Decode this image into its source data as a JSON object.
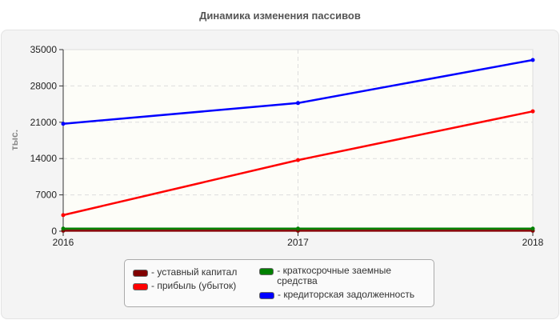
{
  "title": "Динамика изменения пассивов",
  "chart_data": {
    "type": "line",
    "title": "Динамика изменения пассивов",
    "xlabel": "",
    "ylabel": "тыс.",
    "categories": [
      "2016",
      "2017",
      "2018"
    ],
    "yticks": [
      "0",
      "7000",
      "14000",
      "21000",
      "28000",
      "35000"
    ],
    "ylim": [
      0,
      35000
    ],
    "grid": true,
    "legend_position": "bottom",
    "series": [
      {
        "name": "уставный капитал",
        "color": "#800000",
        "values": [
          100,
          100,
          100
        ]
      },
      {
        "name": "прибыль (убыток)",
        "color": "#ff0000",
        "values": [
          3100,
          13700,
          23100
        ]
      },
      {
        "name": "краткосрочные заемные средства",
        "color": "#008000",
        "values": [
          500,
          500,
          500
        ]
      },
      {
        "name": "кредиторская задолженность",
        "color": "#0000ff",
        "values": [
          20700,
          24700,
          33000
        ]
      }
    ]
  },
  "legend": [
    {
      "label": "- уставный капитал",
      "color": "#800000"
    },
    {
      "label": "- прибыль (убыток)",
      "color": "#ff0000"
    },
    {
      "label": "- краткосрочные заемные средства",
      "color": "#008000"
    },
    {
      "label": "- кредиторская задолженность",
      "color": "#0000ff"
    }
  ]
}
